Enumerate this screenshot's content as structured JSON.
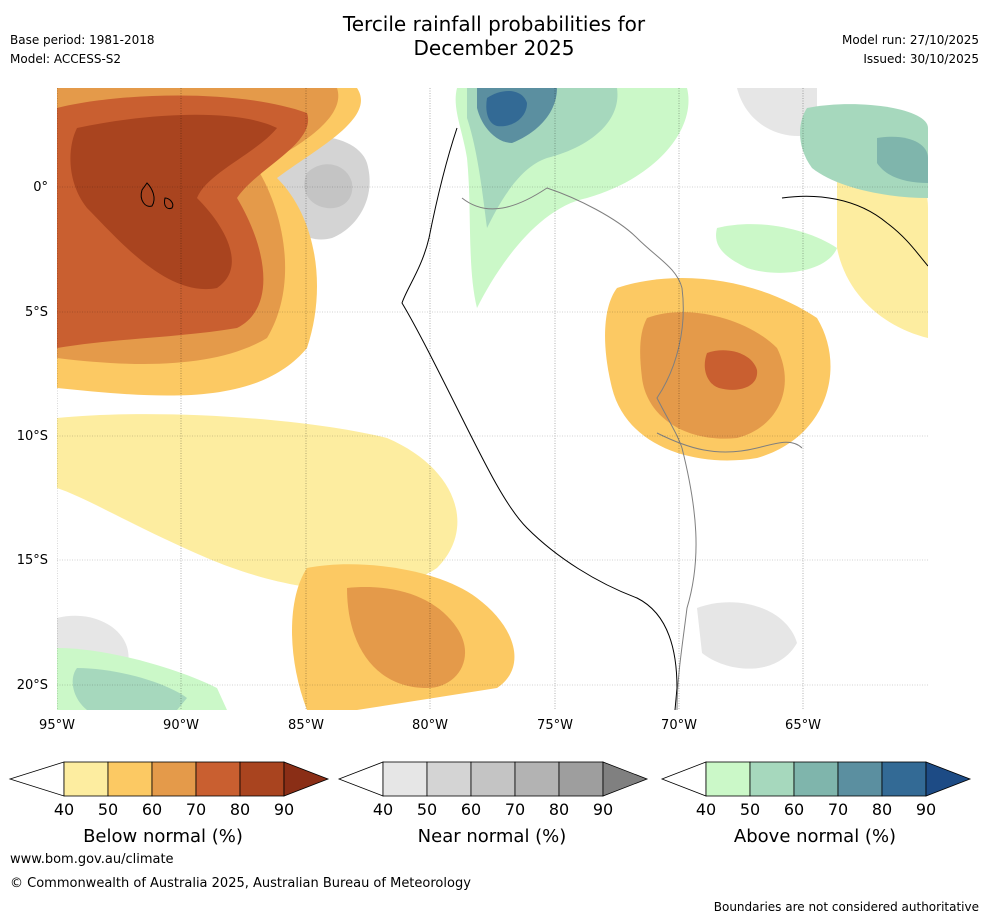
{
  "header": {
    "title_line1": "Tercile rainfall probabilities for",
    "title_line2": "December 2025",
    "base_period": "Base period: 1981-2018",
    "model": "Model: ACCESS-S2",
    "model_run": "Model run: 27/10/2025",
    "issued": "Issued: 30/10/2025"
  },
  "map": {
    "lat_labels": [
      "0°",
      "5°S",
      "10°S",
      "15°S",
      "20°S"
    ],
    "lon_labels": [
      "95°W",
      "90°W",
      "85°W",
      "80°W",
      "75°W",
      "70°W",
      "65°W"
    ]
  },
  "colorbars": [
    {
      "name": "below",
      "label": "Below normal (%)",
      "ticks": [
        "40",
        "50",
        "60",
        "70",
        "80",
        "90"
      ],
      "colors": [
        "#fdeda0",
        "#fcc963",
        "#e49a4a",
        "#c95f30",
        "#a9441f",
        "#8a2e16"
      ]
    },
    {
      "name": "near",
      "label": "Near normal (%)",
      "ticks": [
        "40",
        "50",
        "60",
        "70",
        "80",
        "90"
      ],
      "colors": [
        "#e6e6e6",
        "#d4d4d4",
        "#c4c4c4",
        "#b3b3b3",
        "#9e9e9e",
        "#808080"
      ]
    },
    {
      "name": "above",
      "label": "Above normal (%)",
      "ticks": [
        "40",
        "50",
        "60",
        "70",
        "80",
        "90"
      ],
      "colors": [
        "#cbf8c8",
        "#a6d8bd",
        "#7fb5ac",
        "#5b8fa0",
        "#336a95",
        "#1d4b85"
      ]
    }
  ],
  "footer": {
    "website": "www.bom.gov.au/climate",
    "copyright": "© Commonwealth of Australia 2025, Australian Bureau of Meteorology",
    "disclaimer": "Boundaries are not considered authoritative"
  }
}
